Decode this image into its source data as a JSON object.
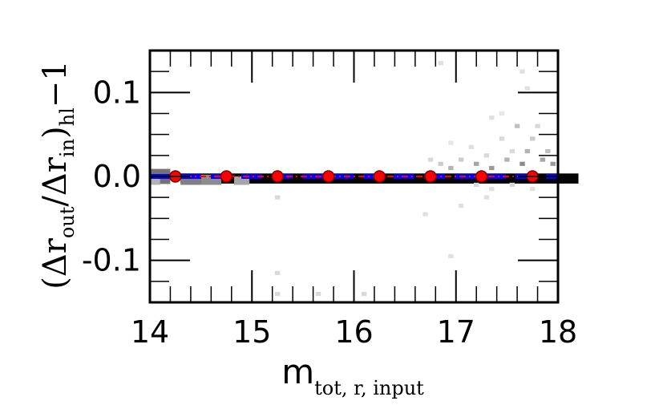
{
  "chart_data": {
    "type": "scatter",
    "xlabel": {
      "main": "m",
      "sub": "tot, r, input"
    },
    "ylabel": {
      "open": "(Δr",
      "sub1": "out",
      "mid": "/Δr",
      "sub2": "in",
      "close": ")",
      "sub3": "hl",
      "tail": "−1"
    },
    "xlim": [
      14,
      18
    ],
    "ylim": [
      -0.15,
      0.15
    ],
    "xticks": [
      14,
      15,
      16,
      17,
      18
    ],
    "xtick_labels": [
      "14",
      "15",
      "16",
      "17",
      "18"
    ],
    "yticks": [
      0.1,
      0.0,
      -0.1
    ],
    "ytick_labels": [
      "0.1",
      "0.0",
      "-0.1"
    ],
    "grid": false,
    "series": [
      {
        "kind": "median-points",
        "color": "#ff0000",
        "x": [
          14.25,
          14.75,
          15.25,
          15.75,
          16.25,
          16.75,
          17.25,
          17.75
        ],
        "y": [
          0,
          0,
          0,
          0,
          0,
          0,
          0,
          0
        ]
      },
      {
        "kind": "reference-line",
        "color": "#0000ff",
        "y": 0
      }
    ],
    "density_cells": [
      {
        "x": 16.25,
        "y": -0.0025,
        "w": 3.9,
        "h": 0.012,
        "shade": 0.98
      },
      {
        "x": 14.1,
        "y": 0.0,
        "w": 0.2,
        "h": 0.018,
        "shade": 0.55
      },
      {
        "x": 14.4,
        "y": -0.004,
        "w": 0.2,
        "h": 0.012,
        "shade": 0.5
      },
      {
        "x": 14.6,
        "y": -0.004,
        "w": 0.2,
        "h": 0.012,
        "shade": 0.45
      },
      {
        "x": 14.9,
        "y": -0.005,
        "w": 0.15,
        "h": 0.01,
        "shade": 0.35
      },
      {
        "x": 14.05,
        "y": -0.005,
        "w": 0.1,
        "h": 0.01,
        "shade": 0.3
      },
      {
        "x": 15.25,
        "y": -0.025,
        "w": 0.05,
        "h": 0.005,
        "shade": 0.15
      },
      {
        "x": 15.25,
        "y": -0.115,
        "w": 0.05,
        "h": 0.005,
        "shade": 0.15
      },
      {
        "x": 15.25,
        "y": -0.14,
        "w": 0.05,
        "h": 0.005,
        "shade": 0.15
      },
      {
        "x": 15.65,
        "y": -0.14,
        "w": 0.05,
        "h": 0.005,
        "shade": 0.15
      },
      {
        "x": 16.1,
        "y": -0.14,
        "w": 0.05,
        "h": 0.005,
        "shade": 0.15
      },
      {
        "x": 16.85,
        "y": 0.135,
        "w": 0.05,
        "h": 0.005,
        "shade": 0.12
      },
      {
        "x": 16.95,
        "y": -0.095,
        "w": 0.05,
        "h": 0.005,
        "shade": 0.12
      },
      {
        "x": 16.7,
        "y": -0.045,
        "w": 0.05,
        "h": 0.005,
        "shade": 0.12
      },
      {
        "x": 17.05,
        "y": -0.035,
        "w": 0.05,
        "h": 0.005,
        "shade": 0.12
      },
      {
        "x": 17.3,
        "y": -0.025,
        "w": 0.05,
        "h": 0.005,
        "shade": 0.12
      },
      {
        "x": 16.75,
        "y": 0.02,
        "w": 0.05,
        "h": 0.005,
        "shade": 0.15
      },
      {
        "x": 16.85,
        "y": 0.015,
        "w": 0.05,
        "h": 0.005,
        "shade": 0.2
      },
      {
        "x": 16.95,
        "y": 0.01,
        "w": 0.05,
        "h": 0.005,
        "shade": 0.3
      },
      {
        "x": 17.05,
        "y": 0.02,
        "w": 0.05,
        "h": 0.005,
        "shade": 0.2
      },
      {
        "x": 17.15,
        "y": 0.035,
        "w": 0.05,
        "h": 0.005,
        "shade": 0.12
      },
      {
        "x": 17.2,
        "y": 0.015,
        "w": 0.05,
        "h": 0.005,
        "shade": 0.35
      },
      {
        "x": 17.3,
        "y": 0.025,
        "w": 0.05,
        "h": 0.005,
        "shade": 0.15
      },
      {
        "x": 17.35,
        "y": 0.01,
        "w": 0.05,
        "h": 0.005,
        "shade": 0.4
      },
      {
        "x": 17.45,
        "y": 0.045,
        "w": 0.05,
        "h": 0.005,
        "shade": 0.15
      },
      {
        "x": 17.5,
        "y": 0.02,
        "w": 0.05,
        "h": 0.005,
        "shade": 0.3
      },
      {
        "x": 17.55,
        "y": 0.03,
        "w": 0.05,
        "h": 0.005,
        "shade": 0.15
      },
      {
        "x": 17.6,
        "y": 0.06,
        "w": 0.05,
        "h": 0.005,
        "shade": 0.25
      },
      {
        "x": 17.65,
        "y": 0.015,
        "w": 0.05,
        "h": 0.005,
        "shade": 0.45
      },
      {
        "x": 17.7,
        "y": 0.03,
        "w": 0.05,
        "h": 0.005,
        "shade": 0.3
      },
      {
        "x": 17.75,
        "y": 0.045,
        "w": 0.05,
        "h": 0.005,
        "shade": 0.2
      },
      {
        "x": 17.8,
        "y": 0.06,
        "w": 0.05,
        "h": 0.005,
        "shade": 0.15
      },
      {
        "x": 17.85,
        "y": 0.02,
        "w": 0.05,
        "h": 0.005,
        "shade": 0.35
      },
      {
        "x": 17.9,
        "y": 0.03,
        "w": 0.05,
        "h": 0.005,
        "shade": 0.25
      },
      {
        "x": 17.95,
        "y": 0.015,
        "w": 0.05,
        "h": 0.005,
        "shade": 0.4
      },
      {
        "x": 17.2,
        "y": -0.01,
        "w": 0.05,
        "h": 0.005,
        "shade": 0.15
      },
      {
        "x": 17.35,
        "y": -0.015,
        "w": 0.05,
        "h": 0.005,
        "shade": 0.12
      },
      {
        "x": 17.55,
        "y": -0.01,
        "w": 0.05,
        "h": 0.005,
        "shade": 0.15
      },
      {
        "x": 17.75,
        "y": -0.015,
        "w": 0.05,
        "h": 0.005,
        "shade": 0.12
      },
      {
        "x": 17.65,
        "y": 0.125,
        "w": 0.05,
        "h": 0.005,
        "shade": 0.12
      },
      {
        "x": 17.7,
        "y": 0.105,
        "w": 0.05,
        "h": 0.005,
        "shade": 0.12
      },
      {
        "x": 17.35,
        "y": 0.07,
        "w": 0.05,
        "h": 0.005,
        "shade": 0.12
      },
      {
        "x": 17.45,
        "y": 0.075,
        "w": 0.05,
        "h": 0.005,
        "shade": 0.1
      },
      {
        "x": 16.95,
        "y": 0.04,
        "w": 0.05,
        "h": 0.005,
        "shade": 0.1
      }
    ]
  }
}
